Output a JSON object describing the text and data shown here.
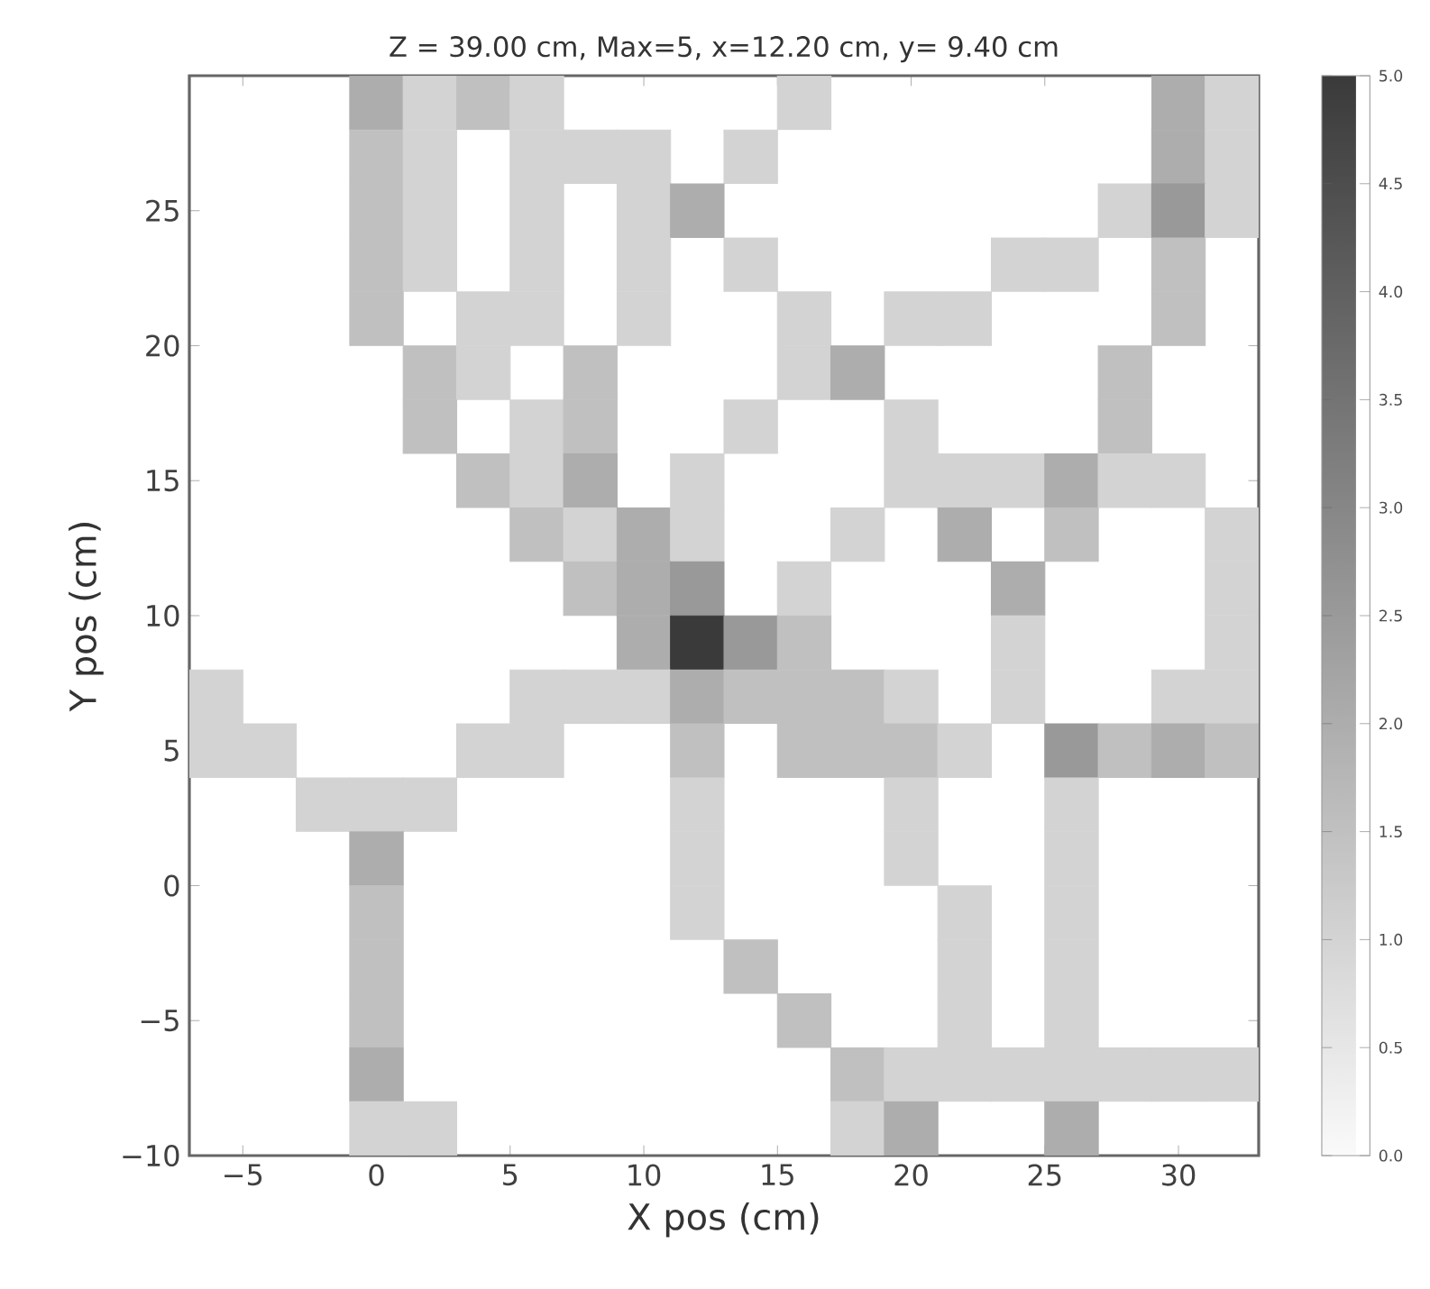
{
  "chart_data": {
    "type": "scatter",
    "title": "Z = 39.00 cm, Max=5, x=12.20 cm, y= 9.40 cm",
    "xlabel": "X pos (cm)",
    "ylabel": "Y pos (cm)",
    "marker": "square",
    "x": [
      0,
      2,
      4,
      6,
      16,
      30,
      32,
      0,
      2,
      6,
      8,
      10,
      14,
      30,
      32,
      0,
      2,
      6,
      10,
      12,
      28,
      30,
      32,
      0,
      2,
      6,
      10,
      14,
      24,
      26,
      30,
      0,
      4,
      6,
      10,
      16,
      20,
      22,
      30,
      2,
      4,
      8,
      16,
      18,
      28,
      2,
      6,
      8,
      14,
      20,
      28,
      4,
      6,
      8,
      12,
      20,
      22,
      24,
      26,
      28,
      30,
      6,
      8,
      10,
      12,
      18,
      22,
      26,
      32,
      8,
      10,
      12,
      16,
      24,
      32,
      10,
      12,
      14,
      16,
      24,
      32,
      -6,
      6,
      8,
      10,
      12,
      14,
      16,
      18,
      20,
      24,
      30,
      32,
      -6,
      -4,
      4,
      6,
      12,
      16,
      18,
      20,
      22,
      26,
      28,
      30,
      32,
      -2,
      0,
      2,
      12,
      20,
      26,
      0,
      12,
      20,
      26,
      0,
      12,
      22,
      26,
      0,
      14,
      22,
      26,
      0,
      16,
      22,
      26,
      0,
      18,
      20,
      22,
      24,
      26,
      28,
      30,
      32,
      0,
      2,
      18,
      20,
      26
    ],
    "values": [
      29,
      29,
      29,
      29,
      29,
      29,
      29,
      27,
      27,
      27,
      27,
      27,
      27,
      27,
      27,
      25,
      25,
      25,
      25,
      25,
      25,
      25,
      25,
      23,
      23,
      23,
      23,
      23,
      23,
      23,
      23,
      21,
      21,
      21,
      21,
      21,
      21,
      21,
      21,
      19,
      19,
      19,
      19,
      19,
      19,
      17,
      17,
      17,
      17,
      17,
      17,
      15,
      15,
      15,
      15,
      15,
      15,
      15,
      15,
      15,
      15,
      13,
      13,
      13,
      13,
      13,
      13,
      13,
      13,
      11,
      11,
      11,
      11,
      11,
      11,
      9,
      9,
      9,
      9,
      9,
      9,
      7,
      7,
      7,
      7,
      7,
      7,
      7,
      7,
      7,
      7,
      7,
      7,
      5,
      5,
      5,
      5,
      5,
      5,
      5,
      5,
      5,
      5,
      5,
      5,
      5,
      3,
      3,
      3,
      3,
      3,
      3,
      1,
      1,
      1,
      1,
      -1,
      -1,
      -1,
      -1,
      -3,
      -3,
      -3,
      -3,
      -5,
      -5,
      -5,
      -5,
      -7,
      -7,
      -7,
      -7,
      -7,
      -7,
      -7,
      -7,
      -7,
      -9,
      -9,
      -9,
      -9,
      -9
    ],
    "cvalues": [
      2,
      1,
      1.5,
      1,
      1,
      2,
      1,
      1.5,
      1,
      1,
      1,
      1,
      1,
      2,
      1,
      1.5,
      1,
      1,
      1,
      2,
      1,
      2.5,
      1,
      1.5,
      1,
      1,
      1,
      1,
      1,
      1,
      1.5,
      1.5,
      1,
      1,
      1,
      1,
      1,
      1,
      1.5,
      1.5,
      1,
      1.5,
      1,
      2,
      1.5,
      1.5,
      1,
      1.5,
      1,
      1,
      1.5,
      1.5,
      1,
      2,
      1,
      1,
      1,
      1,
      2,
      1,
      1,
      1.5,
      1,
      2,
      1,
      1,
      2,
      1.5,
      1,
      1.5,
      2,
      2.5,
      1,
      2,
      1,
      2,
      5,
      2.5,
      1.5,
      1,
      1,
      1,
      1,
      1,
      1,
      2,
      1.5,
      1.5,
      1.5,
      1,
      1,
      1,
      1,
      1,
      1,
      1,
      1,
      1.5,
      1.5,
      1.5,
      1.5,
      1,
      2.5,
      1.5,
      2,
      1.5,
      1,
      1,
      1,
      1,
      1,
      1,
      2,
      1,
      1,
      1,
      1.5,
      1,
      1,
      1,
      1.5,
      1.5,
      1,
      1,
      1.5,
      1.5,
      1,
      1,
      2,
      1.5,
      1,
      1,
      1,
      1,
      1,
      1,
      1,
      1,
      1,
      1,
      2,
      2
    ],
    "xlim": [
      -7,
      33
    ],
    "ylim": [
      -10,
      30
    ],
    "xticks": [
      {
        "value": -5,
        "label": "−5"
      },
      0,
      5,
      10,
      15,
      20,
      25,
      30
    ],
    "yticks": [
      {
        "value": -10,
        "label": "−10"
      },
      {
        "value": -5,
        "label": "−5"
      },
      0,
      5,
      10,
      15,
      20,
      25
    ],
    "clim": [
      0,
      5
    ],
    "cticks": [
      {
        "value": 0,
        "label": "0.0"
      },
      {
        "value": 0.5,
        "label": "0.5"
      },
      {
        "value": 1,
        "label": "1.0"
      },
      {
        "value": 1.5,
        "label": "1.5"
      },
      {
        "value": 2,
        "label": "2.0"
      },
      {
        "value": 2.5,
        "label": "2.5"
      },
      {
        "value": 3,
        "label": "3.0"
      },
      {
        "value": 3.5,
        "label": "3.5"
      },
      {
        "value": 4,
        "label": "4.0"
      },
      {
        "value": 4.5,
        "label": "4.5"
      },
      {
        "value": 5,
        "label": "5.0"
      }
    ]
  }
}
